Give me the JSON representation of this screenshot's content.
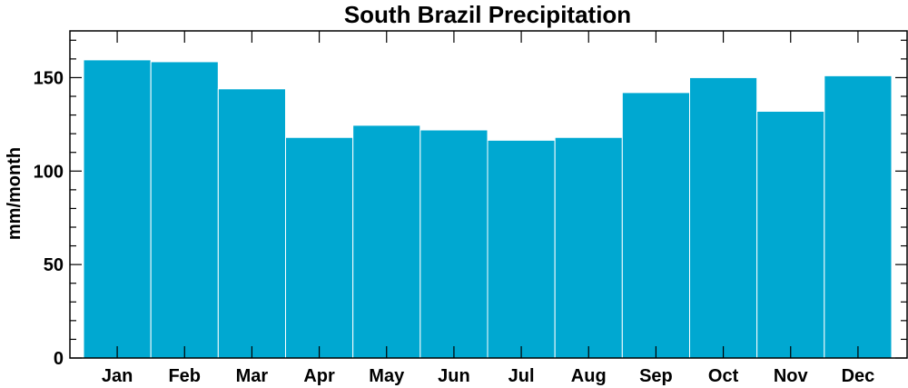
{
  "chart_data": {
    "type": "bar",
    "title": "South Brazil Precipitation",
    "xlabel": "",
    "ylabel": "mm/month",
    "categories": [
      "Jan",
      "Feb",
      "Mar",
      "Apr",
      "May",
      "Jun",
      "Jul",
      "Aug",
      "Sep",
      "Oct",
      "Nov",
      "Dec"
    ],
    "values": [
      159.5,
      158.5,
      144,
      118,
      124.5,
      122,
      116.5,
      118,
      142,
      150,
      132,
      151
    ],
    "ylim": [
      0,
      175
    ],
    "yticks": [
      0,
      50,
      100,
      150
    ],
    "yticks_labels": [
      "0",
      "50",
      "100",
      "150"
    ],
    "y_minor_step": 10,
    "grid": false,
    "legend": "none",
    "bar_color": "#00a8d1",
    "bar_edge_color": "#ffffff"
  }
}
